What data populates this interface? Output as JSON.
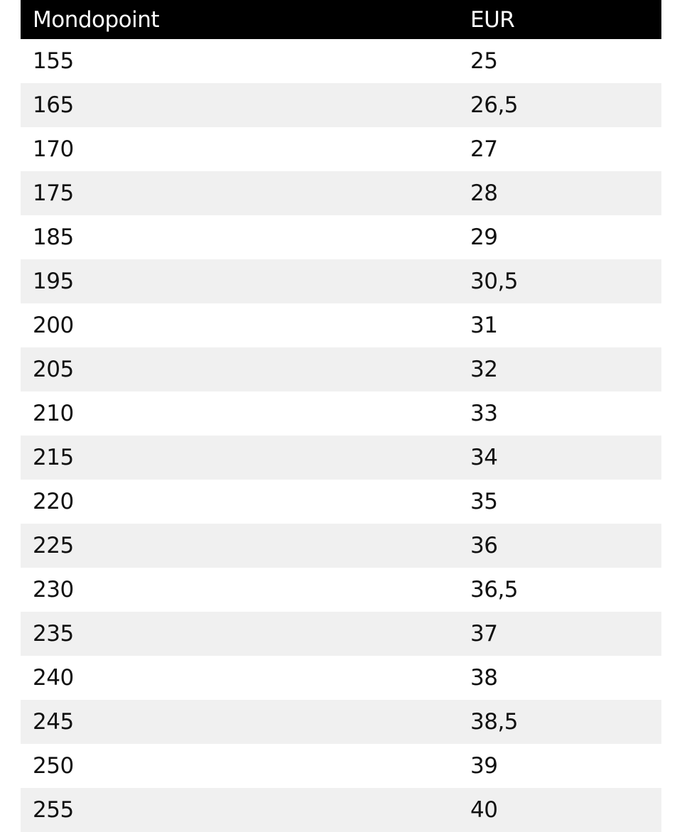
{
  "table": {
    "header": [
      "Mondopoint",
      "EUR"
    ],
    "rows": [
      [
        "155",
        "25"
      ],
      [
        "165",
        "26,5"
      ],
      [
        "170",
        "27"
      ],
      [
        "175",
        "28"
      ],
      [
        "185",
        "29"
      ],
      [
        "195",
        "30,5"
      ],
      [
        "200",
        "31"
      ],
      [
        "205",
        "32"
      ],
      [
        "210",
        "33"
      ],
      [
        "215",
        "34"
      ],
      [
        "220",
        "35"
      ],
      [
        "225",
        "36"
      ],
      [
        "230",
        "36,5"
      ],
      [
        "235",
        "37"
      ],
      [
        "240",
        "38"
      ],
      [
        "245",
        "38,5"
      ],
      [
        "250",
        "39"
      ],
      [
        "255",
        "40"
      ]
    ]
  }
}
